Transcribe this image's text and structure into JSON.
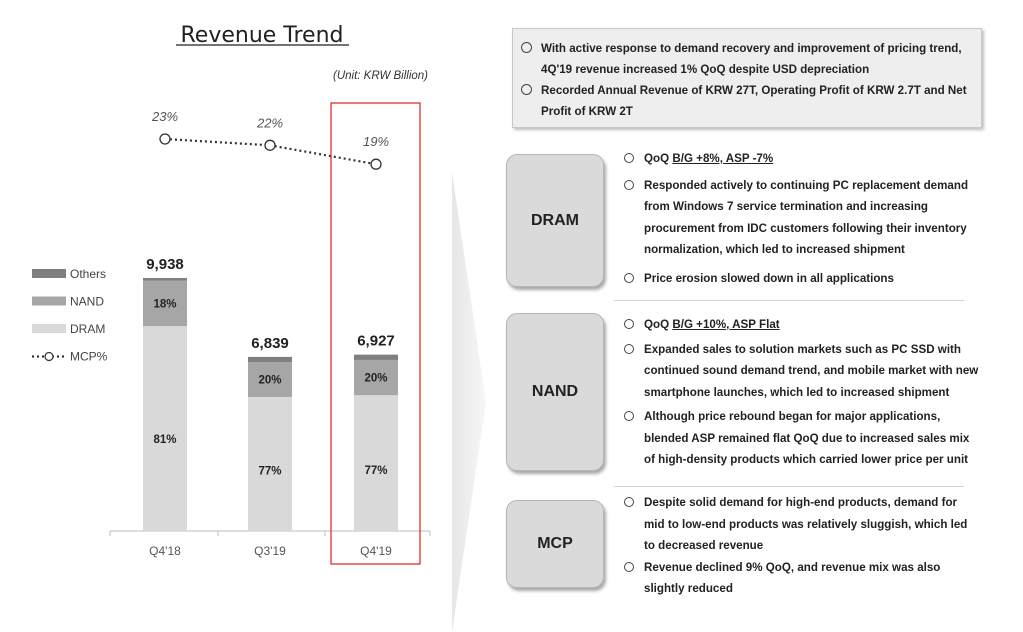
{
  "chart_data": {
    "type": "bar",
    "title": "Revenue Trend",
    "unit_note": "(Unit: KRW Billion)",
    "categories": [
      "Q4'18",
      "Q3'19",
      "Q4'19"
    ],
    "totals": [
      "9,938",
      "6,839",
      "6,927"
    ],
    "total_values": [
      9938,
      6839,
      6927
    ],
    "series": [
      {
        "name": "DRAM",
        "color": "#d9d9d9",
        "values": [
          81,
          77,
          77
        ],
        "labels": [
          "81%",
          "77%",
          "77%"
        ]
      },
      {
        "name": "NAND",
        "color": "#a6a6a6",
        "values": [
          18,
          20,
          20
        ],
        "labels": [
          "18%",
          "20%",
          "20%"
        ]
      },
      {
        "name": "Others",
        "color": "#7f7f7f",
        "values": [
          1,
          3,
          3
        ]
      }
    ],
    "line_series": {
      "name": "MCP%",
      "values": [
        23,
        22,
        19
      ],
      "labels": [
        "23%",
        "22%",
        "19%"
      ]
    },
    "legend": [
      "Others",
      "NAND",
      "DRAM",
      "MCP%"
    ],
    "highlight_category": "Q4'19",
    "highlight_color": "#e02020"
  },
  "summary": [
    "With active response to demand recovery and improvement of pricing trend, 4Q'19 revenue increased 1% QoQ despite USD depreciation",
    "Recorded Annual Revenue of KRW 27T, Operating Profit of KRW 2.7T and Net Profit of KRW 2T"
  ],
  "sections": [
    {
      "label": "DRAM",
      "first_prefix": "QoQ ",
      "first_underline": "B/G +8%, ASP -7%",
      "bullets": [
        "Responded actively to continuing PC replacement demand from Windows 7 service termination and increasing procurement from IDC customers following their inventory normalization, which led to increased shipment",
        "Price erosion slowed down in all applications"
      ]
    },
    {
      "label": "NAND",
      "first_prefix": "QoQ ",
      "first_underline": "B/G +10%, ASP Flat",
      "bullets": [
        "Expanded sales to solution markets such as PC SSD with continued sound demand trend, and mobile market with new smartphone launches, which led to increased shipment",
        "Although price rebound began for major applications, blended ASP remained flat QoQ due to increased sales mix of high-density products which carried lower price per unit"
      ]
    },
    {
      "label": "MCP",
      "bullets": [
        "Despite solid demand for high-end products, demand for mid to low-end products was relatively sluggish, which led to decreased revenue",
        "Revenue declined 9% QoQ, and revenue mix was also slightly reduced"
      ]
    }
  ]
}
